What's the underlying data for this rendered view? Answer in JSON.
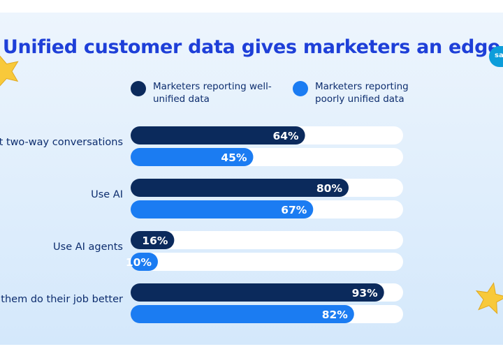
{
  "title": "Unified customer data gives marketers an edge",
  "legend": [
    {
      "label": "Marketers reporting well-unified data",
      "color": "#0b2a5c"
    },
    {
      "label": "Marketers reporting poorly unified data",
      "color": "#1b7cf2"
    }
  ],
  "logo": {
    "text": "sa"
  },
  "colors": {
    "track": "#ffffff",
    "title": "#1e3fd8",
    "text": "#0d2d6e",
    "star": "#f8c93a"
  },
  "chart_data": {
    "type": "bar",
    "orientation": "horizontal",
    "title": "Unified customer data gives marketers an edge",
    "categories": [
      "ort two-way conversations",
      "Use AI",
      "Use AI agents",
      "ps them do their job better"
    ],
    "series": [
      {
        "name": "Marketers reporting well-unified data",
        "values": [
          64,
          80,
          16,
          93
        ],
        "labels": [
          "64%",
          "80%",
          "16%",
          "93%"
        ]
      },
      {
        "name": "Marketers reporting poorly unified data",
        "values": [
          45,
          67,
          10,
          82
        ],
        "labels": [
          "45%",
          "67%",
          "10%",
          "82%"
        ]
      }
    ],
    "xlim": [
      0,
      100
    ],
    "unit": "%",
    "legend_position": "top",
    "grid": false
  }
}
